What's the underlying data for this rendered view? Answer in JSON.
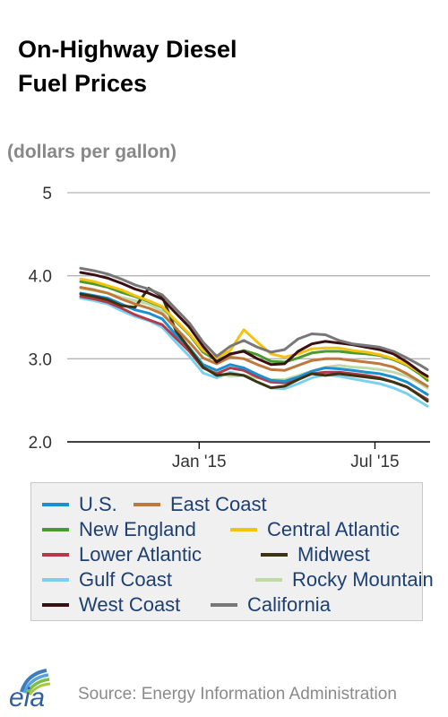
{
  "title_lines": [
    "On-Highway Diesel",
    "Fuel Prices"
  ],
  "source": "Source: Energy Information Administration",
  "logo_text": "eia",
  "chart_data": {
    "type": "line",
    "title": "On-Highway Diesel Fuel Prices",
    "ylabel": "(dollars per gallon)",
    "ylim": [
      2.0,
      5.0
    ],
    "yticks": [
      2.0,
      3.0,
      4.0,
      5
    ],
    "ytick_labels": [
      "2.0",
      "3.0",
      "4.0",
      "5"
    ],
    "x": [
      "2014-09-01",
      "2014-09-15",
      "2014-09-29",
      "2014-10-13",
      "2014-10-27",
      "2014-11-10",
      "2014-11-24",
      "2014-12-08",
      "2014-12-22",
      "2015-01-05",
      "2015-01-19",
      "2015-02-02",
      "2015-02-16",
      "2015-03-02",
      "2015-03-16",
      "2015-03-30",
      "2015-04-13",
      "2015-04-27",
      "2015-05-11",
      "2015-05-25",
      "2015-06-08",
      "2015-06-22",
      "2015-07-06",
      "2015-07-20",
      "2015-08-03",
      "2015-08-17",
      "2015-08-24"
    ],
    "xticks": [
      "2015-01-01",
      "2015-07-01"
    ],
    "xtick_labels": [
      "Jan '15",
      "Jul '15"
    ],
    "grid": "horizontal",
    "legend_position": "bottom",
    "series": [
      {
        "name": "U.S.",
        "color": "#1a8fd1",
        "values": [
          3.79,
          3.76,
          3.73,
          3.66,
          3.59,
          3.55,
          3.48,
          3.29,
          3.13,
          2.93,
          2.86,
          2.93,
          2.89,
          2.81,
          2.74,
          2.73,
          2.78,
          2.85,
          2.89,
          2.88,
          2.86,
          2.84,
          2.82,
          2.78,
          2.72,
          2.62,
          2.57
        ]
      },
      {
        "name": "East Coast",
        "color": "#c0773a",
        "values": [
          3.86,
          3.83,
          3.79,
          3.72,
          3.66,
          3.61,
          3.54,
          3.37,
          3.2,
          3.01,
          2.94,
          3.02,
          3.0,
          2.93,
          2.87,
          2.86,
          2.92,
          2.98,
          3.0,
          3.0,
          2.98,
          2.96,
          2.94,
          2.9,
          2.82,
          2.72,
          2.67
        ]
      },
      {
        "name": "New England",
        "color": "#4a9a2e",
        "values": [
          3.93,
          3.9,
          3.86,
          3.8,
          3.75,
          3.69,
          3.62,
          3.45,
          3.29,
          3.08,
          2.98,
          3.05,
          3.1,
          3.05,
          2.97,
          2.96,
          3.01,
          3.07,
          3.09,
          3.09,
          3.07,
          3.06,
          3.04,
          2.99,
          2.92,
          2.81,
          2.74
        ]
      },
      {
        "name": "Central Atlantic",
        "color": "#f7c20f",
        "values": [
          3.96,
          3.93,
          3.88,
          3.83,
          3.76,
          3.7,
          3.63,
          3.46,
          3.3,
          3.1,
          3.01,
          3.1,
          3.35,
          3.2,
          3.06,
          3.02,
          3.06,
          3.12,
          3.13,
          3.13,
          3.1,
          3.08,
          3.05,
          3.0,
          2.93,
          2.83,
          2.77
        ]
      },
      {
        "name": "Lower Atlantic",
        "color": "#b33a4a",
        "values": [
          3.75,
          3.72,
          3.68,
          3.61,
          3.53,
          3.47,
          3.41,
          3.25,
          3.09,
          2.89,
          2.82,
          2.89,
          2.86,
          2.78,
          2.72,
          2.71,
          2.76,
          2.82,
          2.84,
          2.84,
          2.82,
          2.8,
          2.77,
          2.72,
          2.66,
          2.56,
          2.51
        ]
      },
      {
        "name": "Midwest",
        "color": "#3c3310",
        "values": [
          3.78,
          3.75,
          3.71,
          3.64,
          3.62,
          3.85,
          3.75,
          3.34,
          3.12,
          2.9,
          2.8,
          2.82,
          2.8,
          2.72,
          2.65,
          2.67,
          2.75,
          2.82,
          2.8,
          2.82,
          2.8,
          2.78,
          2.76,
          2.72,
          2.66,
          2.55,
          2.49
        ]
      },
      {
        "name": "Gulf Coast",
        "color": "#7bd0f0",
        "values": [
          3.73,
          3.7,
          3.66,
          3.58,
          3.51,
          3.46,
          3.38,
          3.2,
          3.03,
          2.83,
          2.77,
          2.84,
          2.8,
          2.72,
          2.65,
          2.64,
          2.7,
          2.77,
          2.81,
          2.79,
          2.76,
          2.73,
          2.7,
          2.65,
          2.58,
          2.48,
          2.43
        ]
      },
      {
        "name": "Rocky Mountain",
        "color": "#bedaa8",
        "values": [
          3.85,
          3.82,
          3.79,
          3.74,
          3.7,
          3.66,
          3.57,
          3.36,
          3.14,
          2.93,
          2.83,
          2.79,
          2.8,
          2.77,
          2.75,
          2.75,
          2.8,
          2.85,
          2.9,
          2.92,
          2.9,
          2.89,
          2.87,
          2.84,
          2.79,
          2.7,
          2.65
        ]
      },
      {
        "name": "West Coast",
        "color": "#3b0f12",
        "values": [
          4.04,
          4.01,
          3.97,
          3.91,
          3.84,
          3.79,
          3.72,
          3.55,
          3.38,
          3.15,
          2.96,
          3.06,
          3.09,
          3.0,
          2.93,
          2.94,
          3.09,
          3.18,
          3.21,
          3.19,
          3.17,
          3.14,
          3.11,
          3.06,
          2.96,
          2.84,
          2.79
        ]
      },
      {
        "name": "California",
        "color": "#777777",
        "values": [
          4.09,
          4.06,
          4.02,
          3.96,
          3.89,
          3.84,
          3.77,
          3.6,
          3.43,
          3.2,
          3.03,
          3.15,
          3.22,
          3.14,
          3.08,
          3.11,
          3.24,
          3.3,
          3.29,
          3.22,
          3.18,
          3.16,
          3.14,
          3.09,
          3.01,
          2.92,
          2.87
        ]
      }
    ]
  }
}
